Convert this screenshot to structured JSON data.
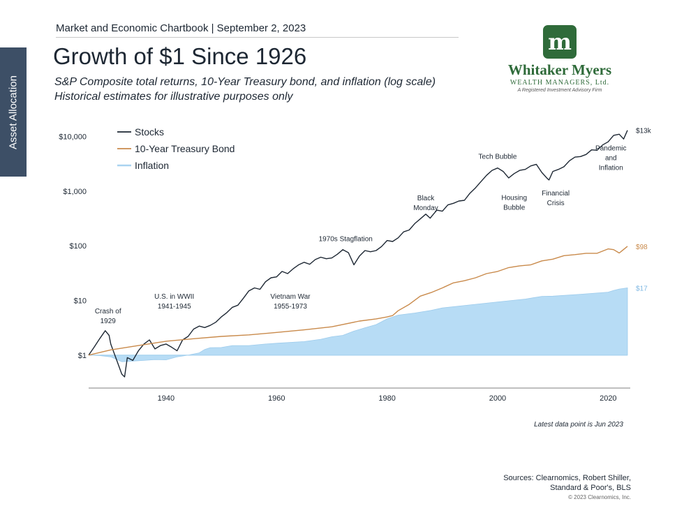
{
  "header": {
    "line": "Market and Economic Chartbook | September 2, 2023",
    "side_tab": "Asset Allocation"
  },
  "logo": {
    "mark": "m",
    "name": "Whitaker Myers",
    "subname": "WEALTH MANAGERS, Ltd.",
    "tagline": "A Registered Investment Advisory Firm"
  },
  "chart_data": {
    "type": "line",
    "title": "Growth of $1 Since 1926",
    "subtitle": [
      "S&P Composite total returns, 10-Year Treasury bond, and inflation (log scale)",
      "Historical estimates for illustrative purposes only"
    ],
    "xlabel": "",
    "ylabel": "",
    "scale": "log",
    "xlim": [
      1926,
      2024
    ],
    "ylim": [
      0.25,
      20000
    ],
    "x_ticks": [
      1940,
      1960,
      1980,
      2000,
      2020
    ],
    "y_ticks": [
      {
        "value": 1,
        "label": "$1"
      },
      {
        "value": 10,
        "label": "$10"
      },
      {
        "value": 100,
        "label": "$100"
      },
      {
        "value": 1000,
        "label": "$1,000"
      },
      {
        "value": 10000,
        "label": "$10,000"
      }
    ],
    "legend_position": "top-left",
    "grid": false,
    "series": [
      {
        "name": "Stocks",
        "color": "#1d2733",
        "style": "line",
        "end_label": "$13k",
        "points": [
          [
            1926,
            1
          ],
          [
            1927,
            1.4
          ],
          [
            1928,
            2.0
          ],
          [
            1929,
            2.8
          ],
          [
            1929.7,
            2.3
          ],
          [
            1930,
            1.6
          ],
          [
            1931,
            0.85
          ],
          [
            1932,
            0.45
          ],
          [
            1932.5,
            0.4
          ],
          [
            1933,
            0.9
          ],
          [
            1934,
            0.8
          ],
          [
            1935,
            1.2
          ],
          [
            1936,
            1.6
          ],
          [
            1937,
            1.9
          ],
          [
            1938,
            1.3
          ],
          [
            1939,
            1.5
          ],
          [
            1940,
            1.6
          ],
          [
            1941,
            1.4
          ],
          [
            1942,
            1.2
          ],
          [
            1943,
            1.9
          ],
          [
            1944,
            2.2
          ],
          [
            1945,
            3.0
          ],
          [
            1946,
            3.4
          ],
          [
            1947,
            3.2
          ],
          [
            1948,
            3.5
          ],
          [
            1949,
            4.0
          ],
          [
            1950,
            5.0
          ],
          [
            1951,
            6.0
          ],
          [
            1952,
            7.5
          ],
          [
            1953,
            8.2
          ],
          [
            1954,
            11
          ],
          [
            1955,
            15
          ],
          [
            1956,
            17
          ],
          [
            1957,
            16
          ],
          [
            1958,
            22
          ],
          [
            1959,
            26
          ],
          [
            1960,
            27
          ],
          [
            1961,
            34
          ],
          [
            1962,
            31
          ],
          [
            1963,
            38
          ],
          [
            1964,
            45
          ],
          [
            1965,
            50
          ],
          [
            1966,
            46
          ],
          [
            1967,
            56
          ],
          [
            1968,
            62
          ],
          [
            1969,
            58
          ],
          [
            1970,
            60
          ],
          [
            1971,
            70
          ],
          [
            1972,
            85
          ],
          [
            1973,
            75
          ],
          [
            1974,
            45
          ],
          [
            1975,
            65
          ],
          [
            1976,
            82
          ],
          [
            1977,
            78
          ],
          [
            1978,
            82
          ],
          [
            1979,
            97
          ],
          [
            1980,
            125
          ],
          [
            1981,
            120
          ],
          [
            1982,
            140
          ],
          [
            1983,
            180
          ],
          [
            1984,
            195
          ],
          [
            1985,
            255
          ],
          [
            1986,
            310
          ],
          [
            1987,
            380
          ],
          [
            1987.8,
            320
          ],
          [
            1988,
            340
          ],
          [
            1989,
            450
          ],
          [
            1990,
            430
          ],
          [
            1991,
            560
          ],
          [
            1992,
            600
          ],
          [
            1993,
            660
          ],
          [
            1994,
            680
          ],
          [
            1995,
            920
          ],
          [
            1996,
            1150
          ],
          [
            1997,
            1500
          ],
          [
            1998,
            1950
          ],
          [
            1999,
            2400
          ],
          [
            2000,
            2650
          ],
          [
            2001,
            2300
          ],
          [
            2002,
            1750
          ],
          [
            2003,
            2100
          ],
          [
            2004,
            2400
          ],
          [
            2005,
            2500
          ],
          [
            2006,
            2900
          ],
          [
            2007,
            3100
          ],
          [
            2008,
            2200
          ],
          [
            2009,
            1700
          ],
          [
            2009.3,
            1600
          ],
          [
            2010,
            2300
          ],
          [
            2011,
            2500
          ],
          [
            2012,
            2800
          ],
          [
            2013,
            3600
          ],
          [
            2014,
            4200
          ],
          [
            2015,
            4300
          ],
          [
            2016,
            4700
          ],
          [
            2017,
            5700
          ],
          [
            2018,
            5600
          ],
          [
            2019,
            7000
          ],
          [
            2020,
            8000
          ],
          [
            2021,
            10500
          ],
          [
            2022,
            11000
          ],
          [
            2022.8,
            9000
          ],
          [
            2023.5,
            13000
          ]
        ]
      },
      {
        "name": "10-Year Treasury Bond",
        "color": "#c98a4b",
        "style": "line",
        "end_label": "$98",
        "points": [
          [
            1926,
            1
          ],
          [
            1930,
            1.25
          ],
          [
            1935,
            1.5
          ],
          [
            1940,
            1.8
          ],
          [
            1945,
            2.0
          ],
          [
            1950,
            2.2
          ],
          [
            1955,
            2.35
          ],
          [
            1960,
            2.6
          ],
          [
            1965,
            2.9
          ],
          [
            1970,
            3.3
          ],
          [
            1975,
            4.2
          ],
          [
            1978,
            4.6
          ],
          [
            1980,
            5.0
          ],
          [
            1981,
            5.3
          ],
          [
            1982,
            6.5
          ],
          [
            1984,
            8.5
          ],
          [
            1986,
            12
          ],
          [
            1988,
            14
          ],
          [
            1990,
            17
          ],
          [
            1992,
            21
          ],
          [
            1994,
            23
          ],
          [
            1996,
            26
          ],
          [
            1998,
            31
          ],
          [
            2000,
            34
          ],
          [
            2002,
            40
          ],
          [
            2004,
            43
          ],
          [
            2006,
            45
          ],
          [
            2008,
            53
          ],
          [
            2010,
            57
          ],
          [
            2012,
            66
          ],
          [
            2014,
            69
          ],
          [
            2016,
            73
          ],
          [
            2018,
            73
          ],
          [
            2020,
            88
          ],
          [
            2021,
            85
          ],
          [
            2022,
            74
          ],
          [
            2023.5,
            98
          ]
        ]
      },
      {
        "name": "Inflation",
        "color": "#b7dcf5",
        "style": "area",
        "end_label": "$17",
        "points": [
          [
            1926,
            1
          ],
          [
            1928,
            0.98
          ],
          [
            1930,
            0.93
          ],
          [
            1932,
            0.76
          ],
          [
            1934,
            0.78
          ],
          [
            1936,
            0.8
          ],
          [
            1938,
            0.83
          ],
          [
            1940,
            0.82
          ],
          [
            1942,
            0.93
          ],
          [
            1944,
            1.0
          ],
          [
            1946,
            1.1
          ],
          [
            1947,
            1.27
          ],
          [
            1948,
            1.37
          ],
          [
            1950,
            1.38
          ],
          [
            1952,
            1.5
          ],
          [
            1955,
            1.5
          ],
          [
            1958,
            1.6
          ],
          [
            1960,
            1.65
          ],
          [
            1965,
            1.77
          ],
          [
            1968,
            1.95
          ],
          [
            1970,
            2.17
          ],
          [
            1972,
            2.3
          ],
          [
            1974,
            2.75
          ],
          [
            1976,
            3.17
          ],
          [
            1978,
            3.62
          ],
          [
            1980,
            4.6
          ],
          [
            1982,
            5.4
          ],
          [
            1985,
            5.9
          ],
          [
            1988,
            6.6
          ],
          [
            1990,
            7.3
          ],
          [
            1995,
            8.3
          ],
          [
            2000,
            9.4
          ],
          [
            2005,
            10.6
          ],
          [
            2008,
            11.9
          ],
          [
            2010,
            12.0
          ],
          [
            2015,
            13.0
          ],
          [
            2020,
            14.2
          ],
          [
            2021,
            15.3
          ],
          [
            2022,
            16.2
          ],
          [
            2023.5,
            17
          ]
        ]
      }
    ],
    "annotations": [
      {
        "text": [
          "Crash of",
          "1929"
        ],
        "x": 1929.5,
        "y": 5.8
      },
      {
        "text": [
          "U.S. in WWII",
          "1941-1945"
        ],
        "x": 1941.5,
        "y": 10.7
      },
      {
        "text": [
          "Vietnam War",
          "1955-1973"
        ],
        "x": 1962.5,
        "y": 10.7
      },
      {
        "text": [
          "1970s Stagflation"
        ],
        "x": 1972.5,
        "y": 121
      },
      {
        "text": [
          "Black",
          "Monday"
        ],
        "x": 1987,
        "y": 680
      },
      {
        "text": [
          "Tech Bubble"
        ],
        "x": 2000,
        "y": 3900
      },
      {
        "text": [
          "Housing",
          "Bubble"
        ],
        "x": 2003,
        "y": 690
      },
      {
        "text": [
          "Financial",
          "Crisis"
        ],
        "x": 2010.5,
        "y": 830
      },
      {
        "text": [
          "Pandemic",
          "and",
          "Inflation"
        ],
        "x": 2020.5,
        "y": 5600
      }
    ]
  },
  "footer": {
    "note": "Latest data point is Jun 2023",
    "sources": [
      "Sources: Clearnomics, Robert Shiller,",
      "Standard & Poor's, BLS"
    ],
    "copyright": "© 2023 Clearnomics, Inc."
  }
}
